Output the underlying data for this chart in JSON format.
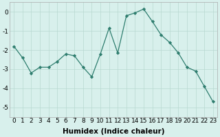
{
  "x": [
    0,
    1,
    2,
    3,
    4,
    5,
    6,
    7,
    8,
    9,
    10,
    11,
    12,
    13,
    14,
    15,
    16,
    17,
    18,
    19,
    20,
    21,
    22,
    23
  ],
  "y": [
    -1.8,
    -2.4,
    -3.2,
    -2.9,
    -2.9,
    -2.6,
    -2.2,
    -2.3,
    -2.9,
    -3.4,
    -2.2,
    -0.85,
    -2.15,
    -0.2,
    -0.05,
    0.15,
    -0.5,
    -1.2,
    -1.6,
    -2.15,
    -2.9,
    -3.1,
    -3.9,
    -4.7
  ],
  "line_color": "#2e7d6e",
  "marker": "D",
  "marker_size": 2.2,
  "bg_color": "#d8f0ec",
  "grid_color": "#b8d8d0",
  "xlabel": "Humidex (Indice chaleur)",
  "xlim": [
    -0.5,
    23.5
  ],
  "ylim": [
    -5.5,
    0.5
  ],
  "yticks": [
    0,
    -1,
    -2,
    -3,
    -4,
    -5
  ],
  "xticks": [
    0,
    1,
    2,
    3,
    4,
    5,
    6,
    7,
    8,
    9,
    10,
    11,
    12,
    13,
    14,
    15,
    16,
    17,
    18,
    19,
    20,
    21,
    22,
    23
  ],
  "xtick_labels": [
    "0",
    "1",
    "2",
    "3",
    "4",
    "5",
    "6",
    "7",
    "8",
    "9",
    "10",
    "11",
    "12",
    "13",
    "14",
    "15",
    "16",
    "17",
    "18",
    "19",
    "20",
    "21",
    "22",
    "23"
  ],
  "xlabel_fontsize": 7.5,
  "tick_fontsize": 6.5
}
